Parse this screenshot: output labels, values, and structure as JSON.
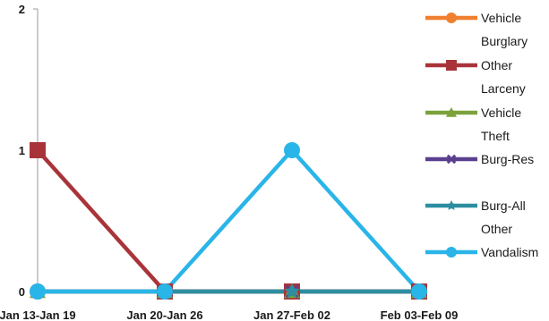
{
  "chart_data": {
    "type": "line",
    "title": "",
    "xlabel": "",
    "ylabel": "",
    "categories": [
      "Jan 13-Jan 19",
      "Jan 20-Jan 26",
      "Jan 27-Feb 02",
      "Feb 03-Feb 09"
    ],
    "ylim": [
      0,
      2
    ],
    "yticks": [
      0,
      1,
      2
    ],
    "grid": false,
    "legend_position": "right",
    "series": [
      {
        "name": "Vehicle Burglary",
        "name_lines": [
          "Vehicle",
          "Burglary"
        ],
        "values": [
          0,
          0,
          0,
          0
        ],
        "color": "#f07f2e",
        "marker": "circle"
      },
      {
        "name": "Other Larceny",
        "name_lines": [
          "Other",
          "Larceny"
        ],
        "values": [
          1,
          0,
          0,
          0
        ],
        "color": "#a8343a",
        "marker": "square"
      },
      {
        "name": "Vehicle Theft",
        "name_lines": [
          "Vehicle",
          "Theft"
        ],
        "values": [
          0,
          0,
          0,
          0
        ],
        "color": "#7ba23a",
        "marker": "triangle"
      },
      {
        "name": "Burg-Res",
        "name_lines": [
          "Burg-Res"
        ],
        "values": [
          0,
          0,
          0,
          0
        ],
        "color": "#5b3f8f",
        "marker": "x"
      },
      {
        "name": "Burg-All Other",
        "name_lines": [
          "Burg-All",
          "Other"
        ],
        "values": [
          0,
          0,
          0,
          0
        ],
        "color": "#2c8ea0",
        "marker": "star"
      },
      {
        "name": "Vandalism",
        "name_lines": [
          "Vandalism"
        ],
        "values": [
          0,
          0,
          1,
          0
        ],
        "color": "#29b5e8",
        "marker": "circle"
      }
    ]
  }
}
